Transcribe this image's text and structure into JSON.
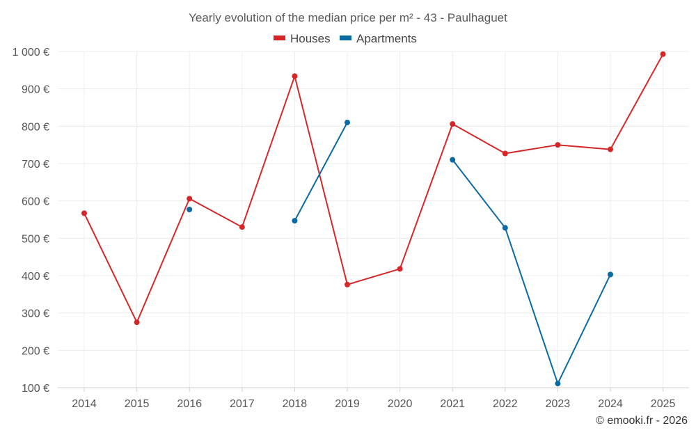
{
  "chart_data": {
    "type": "line",
    "title": "Yearly evolution of the median price per m² - 43 - Paulhaguet",
    "categories": [
      "2014",
      "2015",
      "2016",
      "2017",
      "2018",
      "2019",
      "2020",
      "2021",
      "2022",
      "2023",
      "2024",
      "2025"
    ],
    "series": [
      {
        "name": "Houses",
        "color": "#d62728",
        "values": [
          567,
          275,
          606,
          530,
          934,
          376,
          418,
          806,
          727,
          750,
          738,
          993
        ]
      },
      {
        "name": "Apartments",
        "color": "#0b6aa2",
        "values": [
          null,
          null,
          577,
          null,
          547,
          810,
          null,
          710,
          528,
          111,
          403,
          null
        ]
      }
    ],
    "ylim": [
      100,
      1000
    ],
    "yticks": [
      100,
      200,
      300,
      400,
      500,
      600,
      700,
      800,
      900,
      1000
    ],
    "ytick_labels": [
      "100 €",
      "200 €",
      "300 €",
      "400 €",
      "500 €",
      "600 €",
      "700 €",
      "800 €",
      "900 €",
      "1 000 €"
    ],
    "xlabel": "",
    "ylabel": "",
    "legend_position": "top-center",
    "grid": true
  },
  "credit": "© emooki.fr - 2026"
}
